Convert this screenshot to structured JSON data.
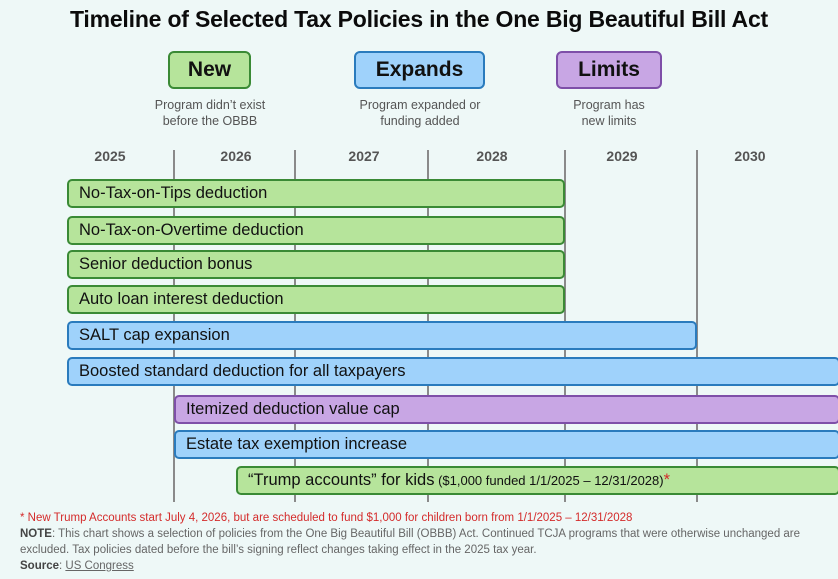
{
  "title": "Timeline of Selected Tax Policies in the One Big Beautiful Bill Act",
  "legend": [
    {
      "label": "New",
      "description_line1": "Program didn’t exist",
      "description_line2": "before the OBBB",
      "fill": "#b6e49b",
      "border": "#3a8a35"
    },
    {
      "label": "Expands",
      "description_line1": "Program expanded or",
      "description_line2": "funding added",
      "fill": "#9fd2fb",
      "border": "#2a7bbd"
    },
    {
      "label": "Limits",
      "description_line1": "Program has",
      "description_line2": "new limits",
      "fill": "#c8a6e4",
      "border": "#7e4fa8"
    }
  ],
  "chart_data": {
    "type": "timeline",
    "title": "Timeline of Selected Tax Policies in the One Big Beautiful Bill Act",
    "years": [
      "2025",
      "2026",
      "2027",
      "2028",
      "2029",
      "2030"
    ],
    "x_range": [
      2025.0,
      2031.0
    ],
    "bars": [
      {
        "label": "No-Tax-on-Tips deduction",
        "category": "New",
        "start": 2025.0,
        "end": 2029.0
      },
      {
        "label": "No-Tax-on-Overtime deduction",
        "category": "New",
        "start": 2025.0,
        "end": 2029.0
      },
      {
        "label": "Senior deduction bonus",
        "category": "New",
        "start": 2025.0,
        "end": 2029.0
      },
      {
        "label": "Auto loan interest deduction",
        "category": "New",
        "start": 2025.0,
        "end": 2029.0
      },
      {
        "label": "SALT cap expansion",
        "category": "Expands",
        "start": 2025.0,
        "end": 2030.0
      },
      {
        "label": "Boosted standard deduction for all taxpayers",
        "category": "Expands",
        "start": 2025.0,
        "end": 2031.0
      },
      {
        "label": "Itemized deduction value cap",
        "category": "Limits",
        "start": 2026.0,
        "end": 2031.0
      },
      {
        "label": "Estate tax exemption increase",
        "category": "Expands",
        "start": 2026.0,
        "end": 2031.0
      },
      {
        "label": "“Trump accounts” for kids",
        "sublabel": "($1,000 funded 1/1/2025 – 12/31/2028)",
        "marker": "*",
        "category": "New",
        "start": 2026.5,
        "end": 2031.0
      }
    ]
  },
  "footnotes": {
    "asterisk_note": "* New Trump Accounts start July 4, 2026, but are scheduled to fund $1,000 for children born from 1/1/2025 – 12/31/2028",
    "note_label": "NOTE",
    "note_text": ": This chart shows a selection of policies from the One Big Beautiful Bill (OBBB) Act. Continued TCJA programs that were otherwise unchanged are excluded. Tax policies dated before the bill’s signing reflect changes taking effect in the 2025 tax year.",
    "source_label": "Source",
    "source_sep": ": ",
    "source_link": "US Congress"
  }
}
